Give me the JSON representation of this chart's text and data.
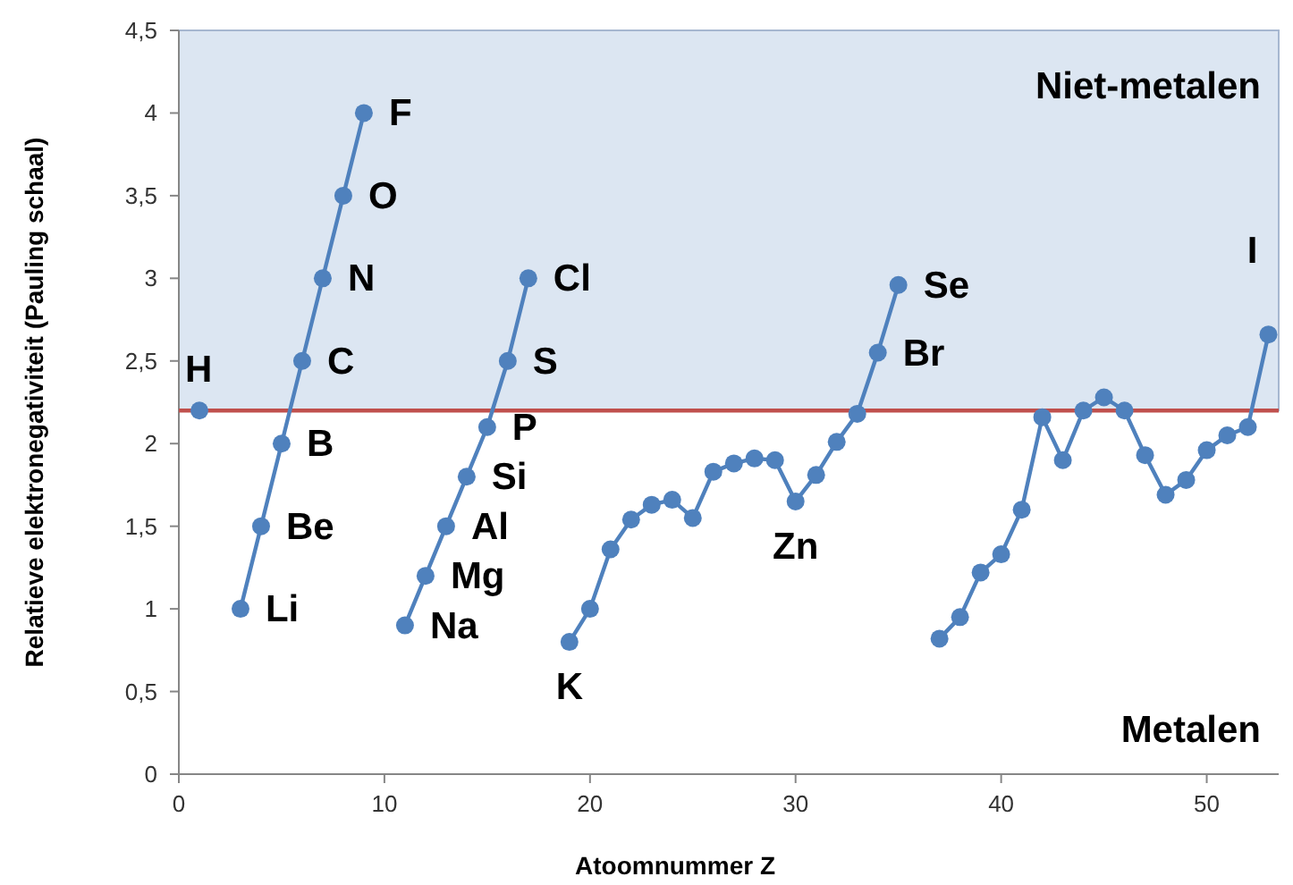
{
  "chart_data": {
    "type": "line",
    "xlabel": "Atoomnummer Z",
    "ylabel": "Relatieve elektronegativiteit (Pauling schaal)",
    "xlim": [
      0,
      53.5
    ],
    "xticks": [
      0,
      10,
      20,
      30,
      40,
      50
    ],
    "ylim": [
      0,
      4.5
    ],
    "yticks": [
      0,
      {
        "value": 0.5,
        "label": "0,5"
      },
      1,
      {
        "value": 1.5,
        "label": "1,5"
      },
      2,
      {
        "value": 2.5,
        "label": "2,5"
      },
      3,
      {
        "value": 3.5,
        "label": "3,5"
      },
      4,
      {
        "value": 4.5,
        "label": "4,5"
      }
    ],
    "grid": false,
    "marker": "circle",
    "line_style": "solid",
    "series": [
      {
        "color": "#4f81bd",
        "x": [
          1
        ],
        "values": [
          2.2
        ]
      },
      {
        "color": "#4f81bd",
        "x": [
          3,
          4,
          5,
          6,
          7,
          8,
          9
        ],
        "values": [
          1.0,
          1.5,
          2.0,
          2.5,
          3.0,
          3.5,
          4.0
        ]
      },
      {
        "color": "#4f81bd",
        "x": [
          11,
          12,
          13,
          14,
          15,
          16,
          17
        ],
        "values": [
          0.9,
          1.2,
          1.5,
          1.8,
          2.1,
          2.5,
          3.0
        ]
      },
      {
        "color": "#4f81bd",
        "x": [
          19,
          20,
          21,
          22,
          23,
          24,
          25,
          26,
          27,
          28,
          29,
          30,
          31,
          32,
          33,
          34,
          35
        ],
        "values": [
          0.8,
          1.0,
          1.36,
          1.54,
          1.63,
          1.66,
          1.55,
          1.83,
          1.88,
          1.91,
          1.9,
          1.65,
          1.81,
          2.01,
          2.18,
          2.55,
          2.96
        ]
      },
      {
        "color": "#4f81bd",
        "x": [
          37,
          38,
          39,
          40,
          41,
          42,
          43,
          44,
          45,
          46,
          47,
          48,
          49,
          50,
          51,
          52,
          53
        ],
        "values": [
          0.82,
          0.95,
          1.22,
          1.33,
          1.6,
          2.16,
          1.9,
          2.2,
          2.28,
          2.2,
          1.93,
          1.69,
          1.78,
          1.96,
          2.05,
          2.1,
          2.66
        ]
      }
    ],
    "bands": [
      {
        "axis": "y",
        "from": 2.2,
        "to": 4.5,
        "label": "Niet-metalen",
        "color": "#dce6f2"
      }
    ],
    "ref_lines": [
      {
        "axis": "y",
        "value": 2.2,
        "color": "#c0504d"
      }
    ],
    "annotations": [
      {
        "text": "H",
        "x": 1,
        "y": 2.2
      },
      {
        "text": "Li",
        "x": 3,
        "y": 1.0
      },
      {
        "text": "Be",
        "x": 4,
        "y": 1.5
      },
      {
        "text": "B",
        "x": 5,
        "y": 2.0
      },
      {
        "text": "C",
        "x": 6,
        "y": 2.5
      },
      {
        "text": "N",
        "x": 7,
        "y": 3.0
      },
      {
        "text": "O",
        "x": 8,
        "y": 3.5
      },
      {
        "text": "F",
        "x": 9,
        "y": 4.0
      },
      {
        "text": "Na",
        "x": 11,
        "y": 0.9
      },
      {
        "text": "Mg",
        "x": 12,
        "y": 1.2
      },
      {
        "text": "Al",
        "x": 13,
        "y": 1.5
      },
      {
        "text": "Si",
        "x": 14,
        "y": 1.8
      },
      {
        "text": "P",
        "x": 15,
        "y": 2.1
      },
      {
        "text": "S",
        "x": 16,
        "y": 2.5
      },
      {
        "text": "Cl",
        "x": 17,
        "y": 3.0
      },
      {
        "text": "K",
        "x": 19,
        "y": 0.8
      },
      {
        "text": "Zn",
        "x": 30,
        "y": 1.65
      },
      {
        "text": "Br",
        "x": 34,
        "y": 2.55
      },
      {
        "text": "Se",
        "x": 35,
        "y": 2.96
      },
      {
        "text": "I",
        "x": 53,
        "y": 2.66
      },
      "Metalen"
    ]
  }
}
